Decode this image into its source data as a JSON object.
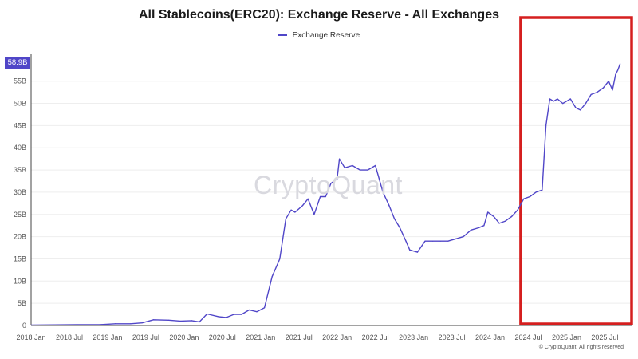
{
  "colors": {
    "series": "#5046c8",
    "badge_bg": "#5046c8",
    "highlight_box": "#d51f1f",
    "grid": "#eeeeee"
  },
  "watermark": "CryptoQuant",
  "copyright": "© CryptoQuant. All rights reserved",
  "chart_data": {
    "type": "line",
    "title": "All Stablecoins(ERC20): Exchange Reserve - All Exchanges",
    "legend": [
      "Exchange Reserve"
    ],
    "legend_position": "top-center",
    "current_value_label": "58.9B",
    "xlabel": "",
    "ylabel": "",
    "ylim": [
      0,
      58.9
    ],
    "y_ticks": [
      0,
      5,
      10,
      15,
      20,
      25,
      30,
      35,
      40,
      45,
      50,
      55
    ],
    "y_tick_labels": [
      "0",
      "5B",
      "10B",
      "15B",
      "20B",
      "25B",
      "30B",
      "35B",
      "40B",
      "45B",
      "50B",
      "55B"
    ],
    "x_range": [
      2018.0,
      2025.85
    ],
    "x_ticks": [
      2018.0,
      2018.5,
      2019.0,
      2019.5,
      2020.0,
      2020.5,
      2021.0,
      2021.5,
      2022.0,
      2022.5,
      2023.0,
      2023.5,
      2024.0,
      2024.5,
      2025.0,
      2025.5
    ],
    "x_tick_labels": [
      "2018 Jan",
      "2018 Jul",
      "2019 Jan",
      "2019 Jul",
      "2020 Jan",
      "2020 Jul",
      "2021 Jan",
      "2021 Jul",
      "2022 Jan",
      "2022 Jul",
      "2023 Jan",
      "2023 Jul",
      "2024 Jan",
      "2024 Jul",
      "2025 Jan",
      "2025 Jul"
    ],
    "highlight_region": {
      "x_start": 2024.4,
      "x_end": 2025.85,
      "label": ""
    },
    "series": [
      {
        "name": "Exchange Reserve",
        "unit": "B USD",
        "x": [
          2018.0,
          2018.3,
          2018.6,
          2018.9,
          2019.1,
          2019.3,
          2019.45,
          2019.6,
          2019.8,
          2019.95,
          2020.1,
          2020.2,
          2020.3,
          2020.45,
          2020.55,
          2020.65,
          2020.75,
          2020.85,
          2020.95,
          2021.05,
          2021.15,
          2021.25,
          2021.33,
          2021.4,
          2021.45,
          2021.55,
          2021.62,
          2021.7,
          2021.78,
          2021.85,
          2021.92,
          2022.0,
          2022.03,
          2022.1,
          2022.2,
          2022.3,
          2022.4,
          2022.5,
          2022.6,
          2022.68,
          2022.75,
          2022.82,
          2022.9,
          2022.95,
          2023.05,
          2023.15,
          2023.25,
          2023.35,
          2023.45,
          2023.55,
          2023.65,
          2023.75,
          2023.85,
          2023.92,
          2023.97,
          2024.05,
          2024.12,
          2024.2,
          2024.28,
          2024.36,
          2024.44,
          2024.52,
          2024.6,
          2024.68,
          2024.73,
          2024.78,
          2024.83,
          2024.88,
          2024.95,
          2025.05,
          2025.12,
          2025.18,
          2025.25,
          2025.32,
          2025.4,
          2025.48,
          2025.55,
          2025.6,
          2025.64,
          2025.67,
          2025.7
        ],
        "values": [
          0.1,
          0.15,
          0.2,
          0.2,
          0.4,
          0.4,
          0.6,
          1.3,
          1.2,
          1.0,
          1.1,
          0.8,
          2.6,
          2.0,
          1.8,
          2.5,
          2.5,
          3.5,
          3.1,
          4.0,
          11.0,
          15.0,
          24.0,
          26.0,
          25.5,
          27.0,
          28.5,
          25.0,
          29.0,
          29.0,
          32.0,
          33.0,
          37.5,
          35.5,
          36.0,
          35.0,
          35.0,
          36.0,
          30.0,
          27.0,
          24.0,
          22.0,
          19.0,
          17.0,
          16.5,
          19.0,
          19.0,
          19.0,
          19.0,
          19.5,
          20.0,
          21.5,
          22.0,
          22.5,
          25.5,
          24.5,
          23.0,
          23.5,
          24.5,
          26.0,
          28.5,
          29.0,
          30.0,
          30.5,
          45.0,
          51.0,
          50.5,
          51.0,
          50.0,
          51.0,
          49.0,
          48.5,
          50.0,
          52.0,
          52.5,
          53.5,
          55.0,
          53.0,
          56.5,
          57.5,
          58.9
        ]
      }
    ]
  }
}
